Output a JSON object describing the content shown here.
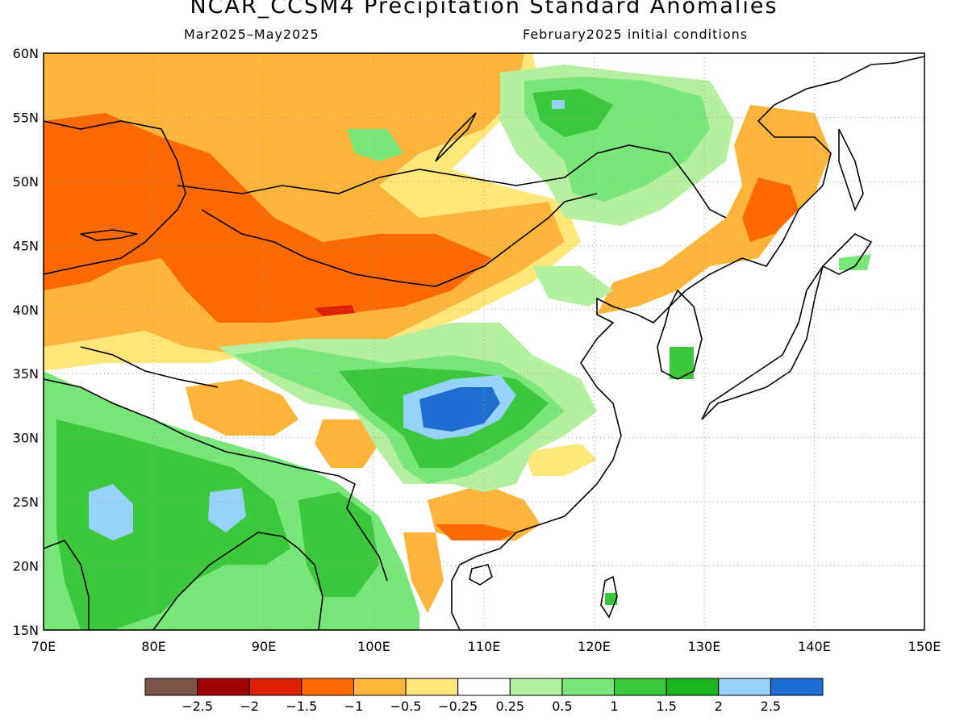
{
  "title": "NCAR_CCSM4 Precipitation Standard Anomalies",
  "subtitle_left": "Mar2025–May2025",
  "subtitle_right": "February2025 initial conditions",
  "map": {
    "extent": {
      "lon_min": 70,
      "lon_max": 150,
      "lat_min": 15,
      "lat_max": 60
    },
    "lat_labels": [
      "60N",
      "55N",
      "50N",
      "45N",
      "40N",
      "35N",
      "30N",
      "25N",
      "20N",
      "15N"
    ],
    "lon_labels": [
      "70E",
      "80E",
      "90E",
      "100E",
      "110E",
      "120E",
      "130E",
      "140E",
      "150E"
    ],
    "gridlines": "dotted",
    "coastline_color": "#000000"
  },
  "colorbar": {
    "colors": [
      "#7a5547",
      "#a00000",
      "#e01e00",
      "#ff6a00",
      "#ffb43c",
      "#ffe678",
      "#ffffff",
      "#b4f0a0",
      "#78e678",
      "#3cc83c",
      "#1eb41e",
      "#96d2fa",
      "#1e6ed2"
    ],
    "labels": [
      "−2.5",
      "−2",
      "−1.5",
      "−1",
      "−0.5",
      "−0.25",
      "0.25",
      "0.5",
      "1",
      "1.5",
      "2",
      "2.5"
    ]
  },
  "colors": {
    "strong_dry": "#e01e00",
    "dry": "#ff6a00",
    "mod_dry": "#ffb43c",
    "slight_dry": "#ffe678",
    "slight_wet": "#b4f0a0",
    "wet": "#78e678",
    "mod_wet": "#3cc83c",
    "strong_wet": "#1eb41e",
    "very_wet": "#96d2fa",
    "extreme_wet": "#1e6ed2"
  }
}
